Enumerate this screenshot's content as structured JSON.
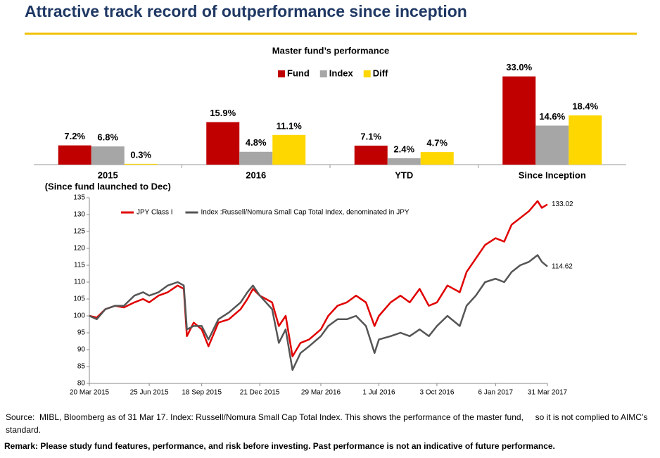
{
  "header": {
    "title": "Attractive track record of outperformance since inception"
  },
  "chart_data": [
    {
      "type": "bar",
      "title": "Master fund’s performance",
      "categories": [
        "2015",
        "2016",
        "YTD",
        "Since Inception"
      ],
      "annotations": [
        "(Since fund launched to Dec)"
      ],
      "series": [
        {
          "name": "Fund",
          "color": "#c00000",
          "values": [
            7.2,
            15.9,
            7.1,
            33.0
          ],
          "value_labels": [
            "7.2%",
            "15.9%",
            "7.1%",
            "33.0%"
          ]
        },
        {
          "name": "Index",
          "color": "#a6a6a6",
          "values": [
            6.8,
            4.8,
            2.4,
            14.6
          ],
          "value_labels": [
            "6.8%",
            "4.8%",
            "2.4%",
            "14.6%"
          ]
        },
        {
          "name": "Diff",
          "color": "#ffd700",
          "values": [
            0.3,
            11.1,
            4.7,
            18.4
          ],
          "value_labels": [
            "0.3%",
            "11.1%",
            "4.7%",
            "18.4%"
          ]
        }
      ],
      "ylim": [
        0,
        35
      ],
      "legend": "top"
    },
    {
      "type": "line",
      "x": [
        "2015-03-20",
        "2015-04-01",
        "2015-04-15",
        "2015-05-01",
        "2015-05-15",
        "2015-06-01",
        "2015-06-15",
        "2015-06-25",
        "2015-07-10",
        "2015-07-25",
        "2015-08-10",
        "2015-08-20",
        "2015-08-25",
        "2015-09-05",
        "2015-09-18",
        "2015-09-29",
        "2015-10-15",
        "2015-11-01",
        "2015-11-20",
        "2015-12-01",
        "2015-12-10",
        "2015-12-21",
        "2016-01-10",
        "2016-01-21",
        "2016-02-01",
        "2016-02-12",
        "2016-02-25",
        "2016-03-10",
        "2016-03-29",
        "2016-04-10",
        "2016-04-25",
        "2016-05-10",
        "2016-05-25",
        "2016-06-10",
        "2016-06-24",
        "2016-07-01",
        "2016-07-20",
        "2016-08-05",
        "2016-08-20",
        "2016-09-05",
        "2016-09-20",
        "2016-10-03",
        "2016-10-20",
        "2016-11-09",
        "2016-11-20",
        "2016-12-05",
        "2016-12-20",
        "2017-01-06",
        "2017-01-20",
        "2017-02-01",
        "2017-02-15",
        "2017-03-01",
        "2017-03-15",
        "2017-03-22",
        "2017-03-31"
      ],
      "series": [
        {
          "name": "JPY Class I",
          "color": "#e00000",
          "values": [
            100,
            99.5,
            102,
            103,
            102.5,
            104,
            105,
            104,
            106,
            107,
            109,
            108,
            94,
            98,
            96,
            91,
            98,
            99,
            102,
            105,
            108,
            106,
            104,
            97,
            100,
            88,
            92,
            93,
            96,
            100,
            103,
            104,
            106,
            104,
            97,
            100,
            104,
            106,
            104,
            108,
            103,
            104,
            109,
            107,
            113,
            117,
            121,
            123,
            122,
            127,
            129,
            131,
            134,
            132,
            133.02
          ]
        },
        {
          "name": "Index :Russell/Nomura Small Cap Total Index, denominated in JPY",
          "color": "#555555",
          "values": [
            100,
            99,
            102,
            103,
            103,
            106,
            107,
            106,
            107,
            109,
            110,
            109,
            96,
            97,
            97,
            93,
            99,
            101,
            104,
            107,
            109,
            106,
            102,
            92,
            96,
            84,
            89,
            91,
            94,
            97,
            99,
            99,
            100,
            97,
            89,
            93,
            94,
            95,
            94,
            96,
            94,
            97,
            100,
            97,
            103,
            106,
            110,
            111,
            110,
            113,
            115,
            116,
            118,
            116,
            114.62
          ]
        }
      ],
      "xlim": [
        "2015-03-20",
        "2017-03-31"
      ],
      "xticks": [
        {
          "value": "2015-03-20",
          "label": "20 Mar 2015"
        },
        {
          "value": "2015-06-25",
          "label": "25 Jun 2015"
        },
        {
          "value": "2015-09-18",
          "label": "18 Sep 2015"
        },
        {
          "value": "2015-12-21",
          "label": "21 Dec 2015"
        },
        {
          "value": "2016-03-29",
          "label": "29 Mar 2016"
        },
        {
          "value": "2016-07-01",
          "label": "1 Jul 2016"
        },
        {
          "value": "2016-10-03",
          "label": "3 Oct 2016"
        },
        {
          "value": "2017-01-06",
          "label": "6 Jan 2017"
        },
        {
          "value": "2017-03-31",
          "label": "31 Mar 2017"
        }
      ],
      "ylim": [
        80,
        135
      ],
      "yticks": [
        80,
        85,
        90,
        95,
        100,
        105,
        110,
        115,
        120,
        125,
        130,
        135
      ],
      "legend": "top-left",
      "grid": false
    }
  ],
  "footer": {
    "source": "Source:  MIBL, Bloomberg as of 31 Mar 17. Index: Russell/Nomura Small Cap Total Index. This shows the performance of the master fund,     so it is not complied to AIMC’s standard.",
    "remark": "Remark: Please study fund features, performance, and risk before investing. Past performance is not an indicative of future performance."
  }
}
